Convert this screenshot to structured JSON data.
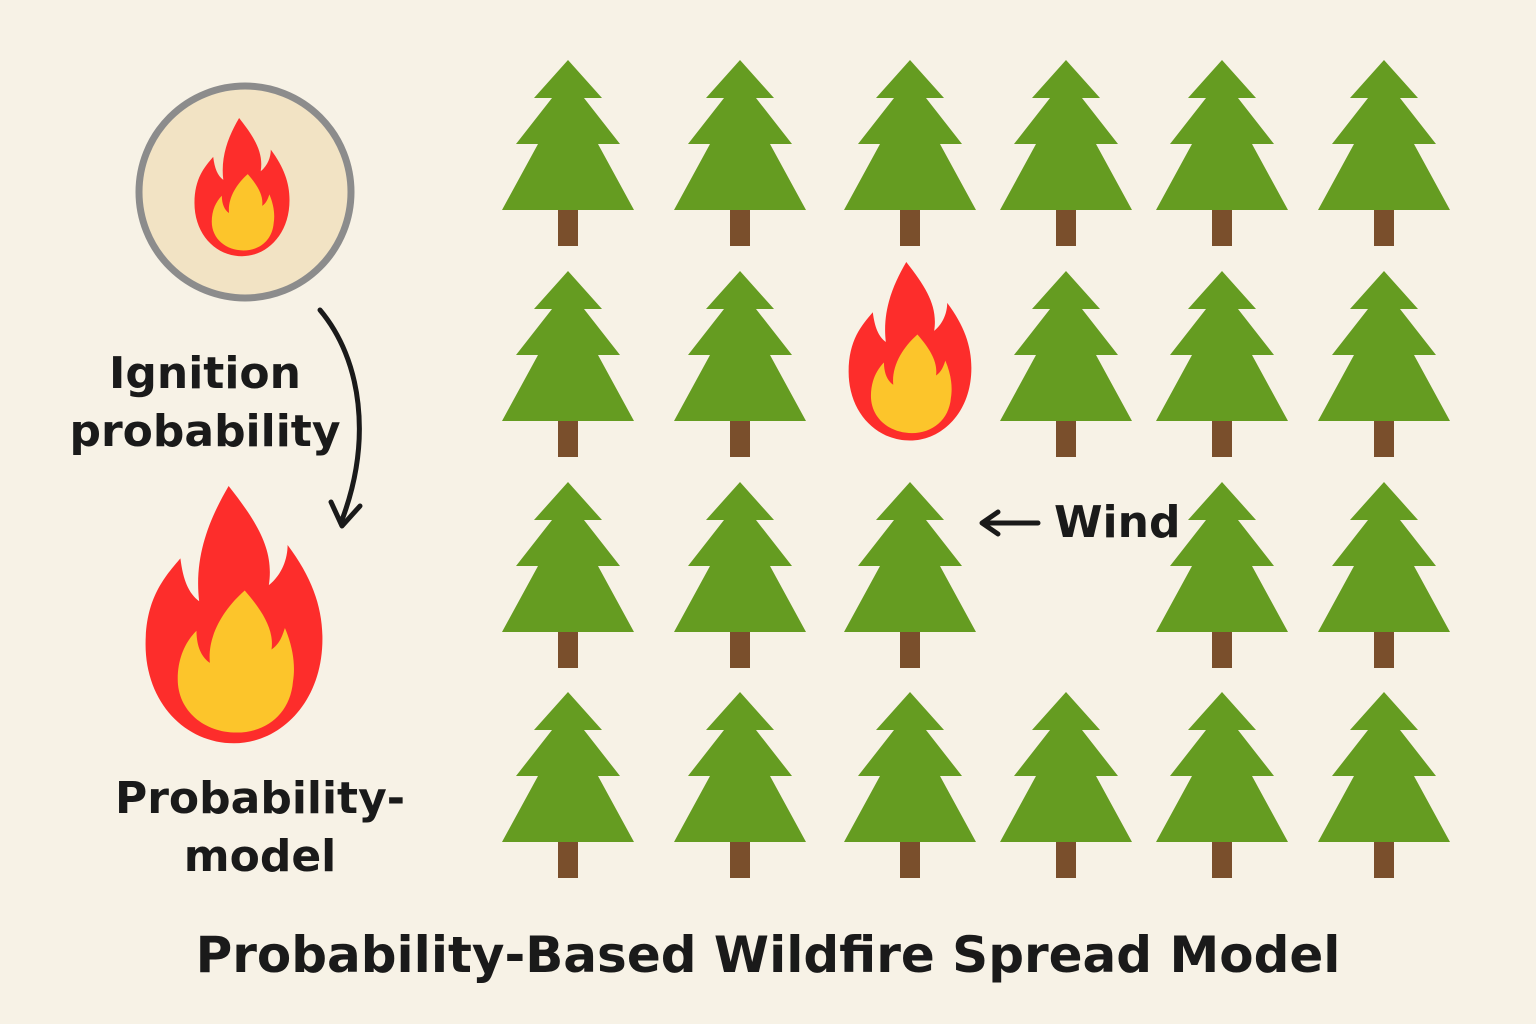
{
  "ignition": {
    "line1": "Ignition",
    "line2": "probability"
  },
  "model": {
    "line1": "Probability-",
    "line2": "model"
  },
  "wind": {
    "label": "Wind"
  },
  "title": "Probability-Based Wildfire Spread Model",
  "grid": {
    "rows": 4,
    "columns": 6,
    "cells": [
      [
        "tree",
        "tree",
        "tree",
        "tree",
        "tree",
        "tree"
      ],
      [
        "tree",
        "tree",
        "fire",
        "tree",
        "tree",
        "tree"
      ],
      [
        "tree",
        "tree",
        "tree",
        "empty",
        "tree",
        "tree"
      ],
      [
        "tree",
        "tree",
        "tree",
        "tree",
        "tree",
        "tree"
      ]
    ]
  },
  "icons": {
    "ignition_badge": "fire-icon",
    "model_icon": "fire-icon",
    "tree": "pine-tree-icon",
    "fire": "fire-icon",
    "wind_arrow": "arrow-left-icon",
    "flow_arrow": "curved-arrow-down-icon"
  },
  "colors": {
    "background": "#f7f2e6",
    "tree_green": "#659c21",
    "trunk": "#7a4f2c",
    "flame_red": "#fd2d2b",
    "flame_yellow": "#fcc52b",
    "badge_fill": "#f2e3c4",
    "badge_ring": "#8c8c8c",
    "text": "#1a1a1a"
  }
}
